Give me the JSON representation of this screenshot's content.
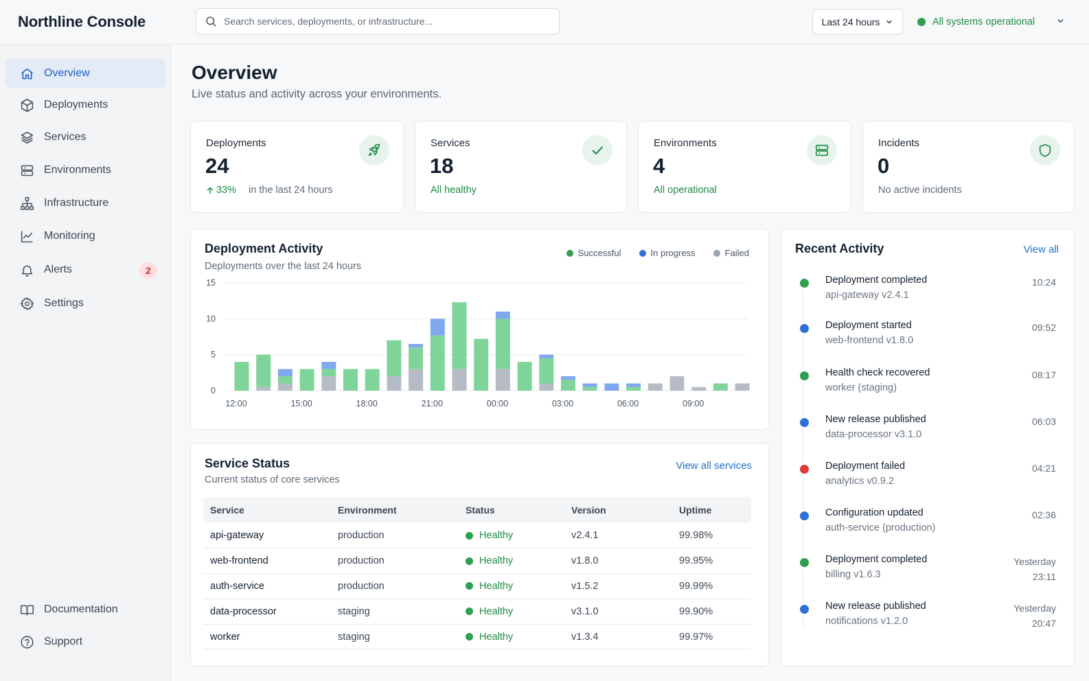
{
  "brand": "Northline Console",
  "search": {
    "placeholder": "Search services, deployments, or infrastructure..."
  },
  "header": {
    "range_label": "Last 24 hours",
    "status_label": "All systems operational"
  },
  "colors": {
    "success": "#2e9e4f",
    "progress": "#2f6fd6",
    "failed": "#9ba3ae",
    "error": "#e03a3a",
    "accent": "#1f6fd1"
  },
  "sidebar": {
    "items": [
      {
        "label": "Overview",
        "icon": "home-icon",
        "active": true
      },
      {
        "label": "Deployments",
        "icon": "cube-icon"
      },
      {
        "label": "Services",
        "icon": "layers-icon"
      },
      {
        "label": "Environments",
        "icon": "server-icon"
      },
      {
        "label": "Infrastructure",
        "icon": "sitemap-icon"
      },
      {
        "label": "Monitoring",
        "icon": "line-chart-icon"
      },
      {
        "label": "Alerts",
        "icon": "bell-icon",
        "badge": "2"
      },
      {
        "label": "Settings",
        "icon": "gear-icon"
      }
    ],
    "footer": [
      {
        "label": "Documentation",
        "icon": "book-icon"
      },
      {
        "label": "Support",
        "icon": "help-circle-icon"
      }
    ]
  },
  "page": {
    "title": "Overview",
    "subtitle": "Live status and activity across your environments."
  },
  "stats": [
    {
      "label": "Deployments",
      "value": "24",
      "trend": "33%",
      "note": "in the last 24 hours",
      "icon": "rocket-icon"
    },
    {
      "label": "Services",
      "value": "18",
      "note": "All healthy",
      "icon": "check-icon"
    },
    {
      "label": "Environments",
      "value": "4",
      "note": "All operational",
      "icon": "server-icon"
    },
    {
      "label": "Incidents",
      "value": "0",
      "note": "No active incidents",
      "icon": "shield-icon"
    }
  ],
  "activity_chart": {
    "title": "Deployment Activity",
    "subtitle": "Deployments over the last 24 hours",
    "legend": [
      "Successful",
      "In progress",
      "Failed"
    ]
  },
  "chart_data": {
    "type": "bar",
    "stacked": true,
    "title": "Deployment Activity",
    "subtitle": "Deployments over the last 24 hours",
    "xlabel": "",
    "ylabel": "",
    "ylim": [
      0,
      15
    ],
    "yticks": [
      0,
      5,
      10,
      15
    ],
    "x_tick_labels": [
      "12:00",
      "15:00",
      "18:00",
      "21:00",
      "00:00",
      "03:00",
      "06:00",
      "09:00"
    ],
    "categories": [
      "12:00",
      "13:00",
      "14:00",
      "15:00",
      "16:00",
      "17:00",
      "18:00",
      "19:00",
      "20:00",
      "21:00",
      "22:00",
      "23:00",
      "00:00",
      "01:00",
      "02:00",
      "03:00",
      "04:00",
      "05:00",
      "06:00",
      "07:00",
      "08:00",
      "09:00",
      "10:00",
      "11:00"
    ],
    "series": [
      {
        "name": "Failed",
        "values": [
          0,
          0.5,
          1,
          0,
          2,
          0,
          0,
          2,
          3,
          0,
          3,
          0,
          3,
          0,
          1,
          0,
          0,
          0,
          0,
          1,
          2,
          0.5,
          0,
          1
        ]
      },
      {
        "name": "Successful",
        "values": [
          4,
          4.5,
          1,
          3,
          1,
          3,
          3,
          5,
          3,
          7.7,
          9.3,
          7.2,
          7,
          4,
          3.5,
          1.5,
          0.5,
          0,
          0.5,
          0,
          0,
          0,
          1,
          0
        ]
      },
      {
        "name": "In progress",
        "values": [
          0,
          0,
          1,
          0,
          1,
          0,
          0,
          0,
          0.5,
          2.3,
          0,
          0,
          1,
          0,
          0.5,
          0.5,
          0.5,
          1,
          0.5,
          0,
          0,
          0,
          0,
          0
        ]
      }
    ],
    "legend_position": "top-right",
    "grid": true
  },
  "service_status": {
    "title": "Service Status",
    "subtitle": "Current status of core services",
    "view_all": "View all services",
    "columns": [
      "Service",
      "Environment",
      "Status",
      "Version",
      "Uptime"
    ],
    "rows": [
      {
        "service": "api-gateway",
        "env": "production",
        "status": "Healthy",
        "version": "v2.4.1",
        "uptime": "99.98%"
      },
      {
        "service": "web-frontend",
        "env": "production",
        "status": "Healthy",
        "version": "v1.8.0",
        "uptime": "99.95%"
      },
      {
        "service": "auth-service",
        "env": "production",
        "status": "Healthy",
        "version": "v1.5.2",
        "uptime": "99.99%"
      },
      {
        "service": "data-processor",
        "env": "staging",
        "status": "Healthy",
        "version": "v3.1.0",
        "uptime": "99.90%"
      },
      {
        "service": "worker",
        "env": "staging",
        "status": "Healthy",
        "version": "v1.3.4",
        "uptime": "99.97%"
      }
    ]
  },
  "recent_activity": {
    "title": "Recent Activity",
    "view_all": "View all",
    "items": [
      {
        "title": "Deployment completed",
        "sub": "api-gateway v2.4.1",
        "time": "10:24",
        "kind": "success"
      },
      {
        "title": "Deployment started",
        "sub": "web-frontend v1.8.0",
        "time": "09:52",
        "kind": "progress"
      },
      {
        "title": "Health check recovered",
        "sub": "worker (staging)",
        "time": "08:17",
        "kind": "success"
      },
      {
        "title": "New release published",
        "sub": "data-processor v3.1.0",
        "time": "06:03",
        "kind": "progress"
      },
      {
        "title": "Deployment failed",
        "sub": "analytics v0.9.2",
        "time": "04:21",
        "kind": "error"
      },
      {
        "title": "Configuration updated",
        "sub": "auth-service (production)",
        "time": "02:36",
        "kind": "progress"
      },
      {
        "title": "Deployment completed",
        "sub": "billing v1.6.3",
        "time": "Yesterday\n23:11",
        "kind": "success"
      },
      {
        "title": "New release published",
        "sub": "notifications v1.2.0",
        "time": "Yesterday\n20:47",
        "kind": "progress"
      }
    ]
  }
}
